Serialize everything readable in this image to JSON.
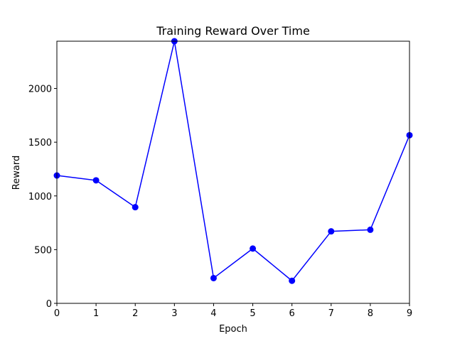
{
  "chart_data": {
    "type": "line",
    "title": "Training Reward Over Time",
    "xlabel": "Epoch",
    "ylabel": "Reward",
    "xlim": [
      0,
      9
    ],
    "ylim": [
      0,
      2440
    ],
    "x_ticks": [
      0,
      1,
      2,
      3,
      4,
      5,
      6,
      7,
      8,
      9
    ],
    "y_ticks": [
      0,
      500,
      1000,
      1500,
      2000
    ],
    "grid": false,
    "series": [
      {
        "color": "#0000ff",
        "marker": "circle",
        "x": [
          0,
          1,
          2,
          3,
          4,
          5,
          6,
          7,
          8,
          9
        ],
        "y": [
          1190,
          1145,
          895,
          2440,
          235,
          510,
          210,
          670,
          685,
          1565
        ]
      }
    ]
  }
}
